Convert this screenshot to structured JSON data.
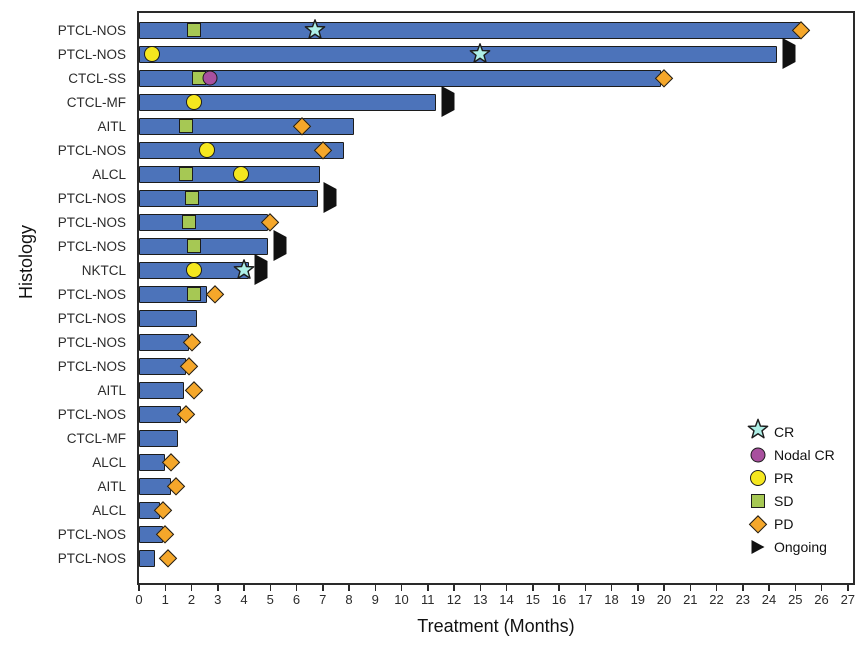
{
  "chart_data": {
    "type": "bar",
    "subtype": "swimmer-plot",
    "orientation": "horizontal",
    "title": "",
    "xlabel": "Treatment (Months)",
    "ylabel": "Histology",
    "xlim": [
      0,
      27.2
    ],
    "xticks": [
      0,
      1,
      2,
      3,
      4,
      5,
      6,
      7,
      8,
      9,
      10,
      11,
      12,
      13,
      14,
      15,
      16,
      17,
      18,
      19,
      20,
      21,
      22,
      23,
      24,
      25,
      26,
      27
    ],
    "grid": false,
    "legend_position": "lower-right",
    "rows": [
      {
        "histology": "PTCL-NOS",
        "months": 25.2,
        "ongoing": false,
        "markers": [
          {
            "type": "SD",
            "at": 2.1
          },
          {
            "type": "CR",
            "at": 6.7
          },
          {
            "type": "PD",
            "at": 25.2
          }
        ]
      },
      {
        "histology": "PTCL-NOS",
        "months": 24.3,
        "ongoing": true,
        "markers": [
          {
            "type": "PR",
            "at": 0.5
          },
          {
            "type": "CR",
            "at": 13.0
          }
        ]
      },
      {
        "histology": "CTCL-SS",
        "months": 19.9,
        "ongoing": false,
        "markers": [
          {
            "type": "SD",
            "at": 2.3
          },
          {
            "type": "NodalCR",
            "at": 2.7
          },
          {
            "type": "PD",
            "at": 20.0
          }
        ]
      },
      {
        "histology": "CTCL-MF",
        "months": 11.3,
        "ongoing": true,
        "markers": [
          {
            "type": "PR",
            "at": 2.1
          }
        ]
      },
      {
        "histology": "AITL",
        "months": 8.2,
        "ongoing": false,
        "markers": [
          {
            "type": "SD",
            "at": 1.8
          },
          {
            "type": "PD",
            "at": 6.2
          }
        ]
      },
      {
        "histology": "PTCL-NOS",
        "months": 7.8,
        "ongoing": false,
        "markers": [
          {
            "type": "PR",
            "at": 2.6
          },
          {
            "type": "PD",
            "at": 7.0
          }
        ]
      },
      {
        "histology": "ALCL",
        "months": 6.9,
        "ongoing": false,
        "markers": [
          {
            "type": "SD",
            "at": 1.8
          },
          {
            "type": "PR",
            "at": 3.9
          }
        ]
      },
      {
        "histology": "PTCL-NOS",
        "months": 6.8,
        "ongoing": true,
        "markers": [
          {
            "type": "SD",
            "at": 2.0
          }
        ]
      },
      {
        "histology": "PTCL-NOS",
        "months": 4.9,
        "ongoing": false,
        "markers": [
          {
            "type": "SD",
            "at": 1.9
          },
          {
            "type": "PD",
            "at": 5.0
          }
        ]
      },
      {
        "histology": "PTCL-NOS",
        "months": 4.9,
        "ongoing": true,
        "markers": [
          {
            "type": "SD",
            "at": 2.1
          }
        ]
      },
      {
        "histology": "NKTCL",
        "months": 4.2,
        "ongoing": true,
        "markers": [
          {
            "type": "PR",
            "at": 2.1
          },
          {
            "type": "CR",
            "at": 4.0
          }
        ]
      },
      {
        "histology": "PTCL-NOS",
        "months": 2.6,
        "ongoing": false,
        "markers": [
          {
            "type": "SD",
            "at": 2.1
          },
          {
            "type": "PD",
            "at": 2.9
          }
        ]
      },
      {
        "histology": "PTCL-NOS",
        "months": 2.2,
        "ongoing": false,
        "markers": []
      },
      {
        "histology": "PTCL-NOS",
        "months": 1.9,
        "ongoing": false,
        "markers": [
          {
            "type": "PD",
            "at": 2.0
          }
        ]
      },
      {
        "histology": "PTCL-NOS",
        "months": 1.8,
        "ongoing": false,
        "markers": [
          {
            "type": "PD",
            "at": 1.9
          }
        ]
      },
      {
        "histology": "AITL",
        "months": 1.7,
        "ongoing": false,
        "markers": [
          {
            "type": "PD",
            "at": 2.1
          }
        ]
      },
      {
        "histology": "PTCL-NOS",
        "months": 1.6,
        "ongoing": false,
        "markers": [
          {
            "type": "PD",
            "at": 1.8
          }
        ]
      },
      {
        "histology": "CTCL-MF",
        "months": 1.5,
        "ongoing": false,
        "markers": []
      },
      {
        "histology": "ALCL",
        "months": 1.0,
        "ongoing": false,
        "markers": [
          {
            "type": "PD",
            "at": 1.2
          }
        ]
      },
      {
        "histology": "AITL",
        "months": 1.2,
        "ongoing": false,
        "markers": [
          {
            "type": "PD",
            "at": 1.4
          }
        ]
      },
      {
        "histology": "ALCL",
        "months": 0.8,
        "ongoing": false,
        "markers": [
          {
            "type": "PD",
            "at": 0.9
          }
        ]
      },
      {
        "histology": "PTCL-NOS",
        "months": 0.9,
        "ongoing": false,
        "markers": [
          {
            "type": "PD",
            "at": 1.0
          }
        ]
      },
      {
        "histology": "PTCL-NOS",
        "months": 0.6,
        "ongoing": false,
        "markers": [
          {
            "type": "PD",
            "at": 1.1
          }
        ]
      }
    ],
    "legend": [
      {
        "type": "CR",
        "label": "CR",
        "shape": "star",
        "color": "#AEEFE6"
      },
      {
        "type": "NodalCR",
        "label": "Nodal CR",
        "shape": "circle",
        "color": "#A8509E"
      },
      {
        "type": "PR",
        "label": "PR",
        "shape": "circle",
        "color": "#F5E71F"
      },
      {
        "type": "SD",
        "label": "SD",
        "shape": "square",
        "color": "#A6C854"
      },
      {
        "type": "PD",
        "label": "PD",
        "shape": "diamond",
        "color": "#F5A72A"
      },
      {
        "type": "Ongoing",
        "label": "Ongoing",
        "shape": "arrow",
        "color": "#111111"
      }
    ]
  },
  "colors": {
    "bar": "#4C73BA",
    "bar_border": "#1c1c1c",
    "axis": "#2a2a2a",
    "background": "#ffffff",
    "CR": "#AEEFE6",
    "NodalCR": "#A8509E",
    "PR": "#F5E71F",
    "SD": "#A6C854",
    "PD": "#F5A72A",
    "Ongoing": "#111111"
  }
}
